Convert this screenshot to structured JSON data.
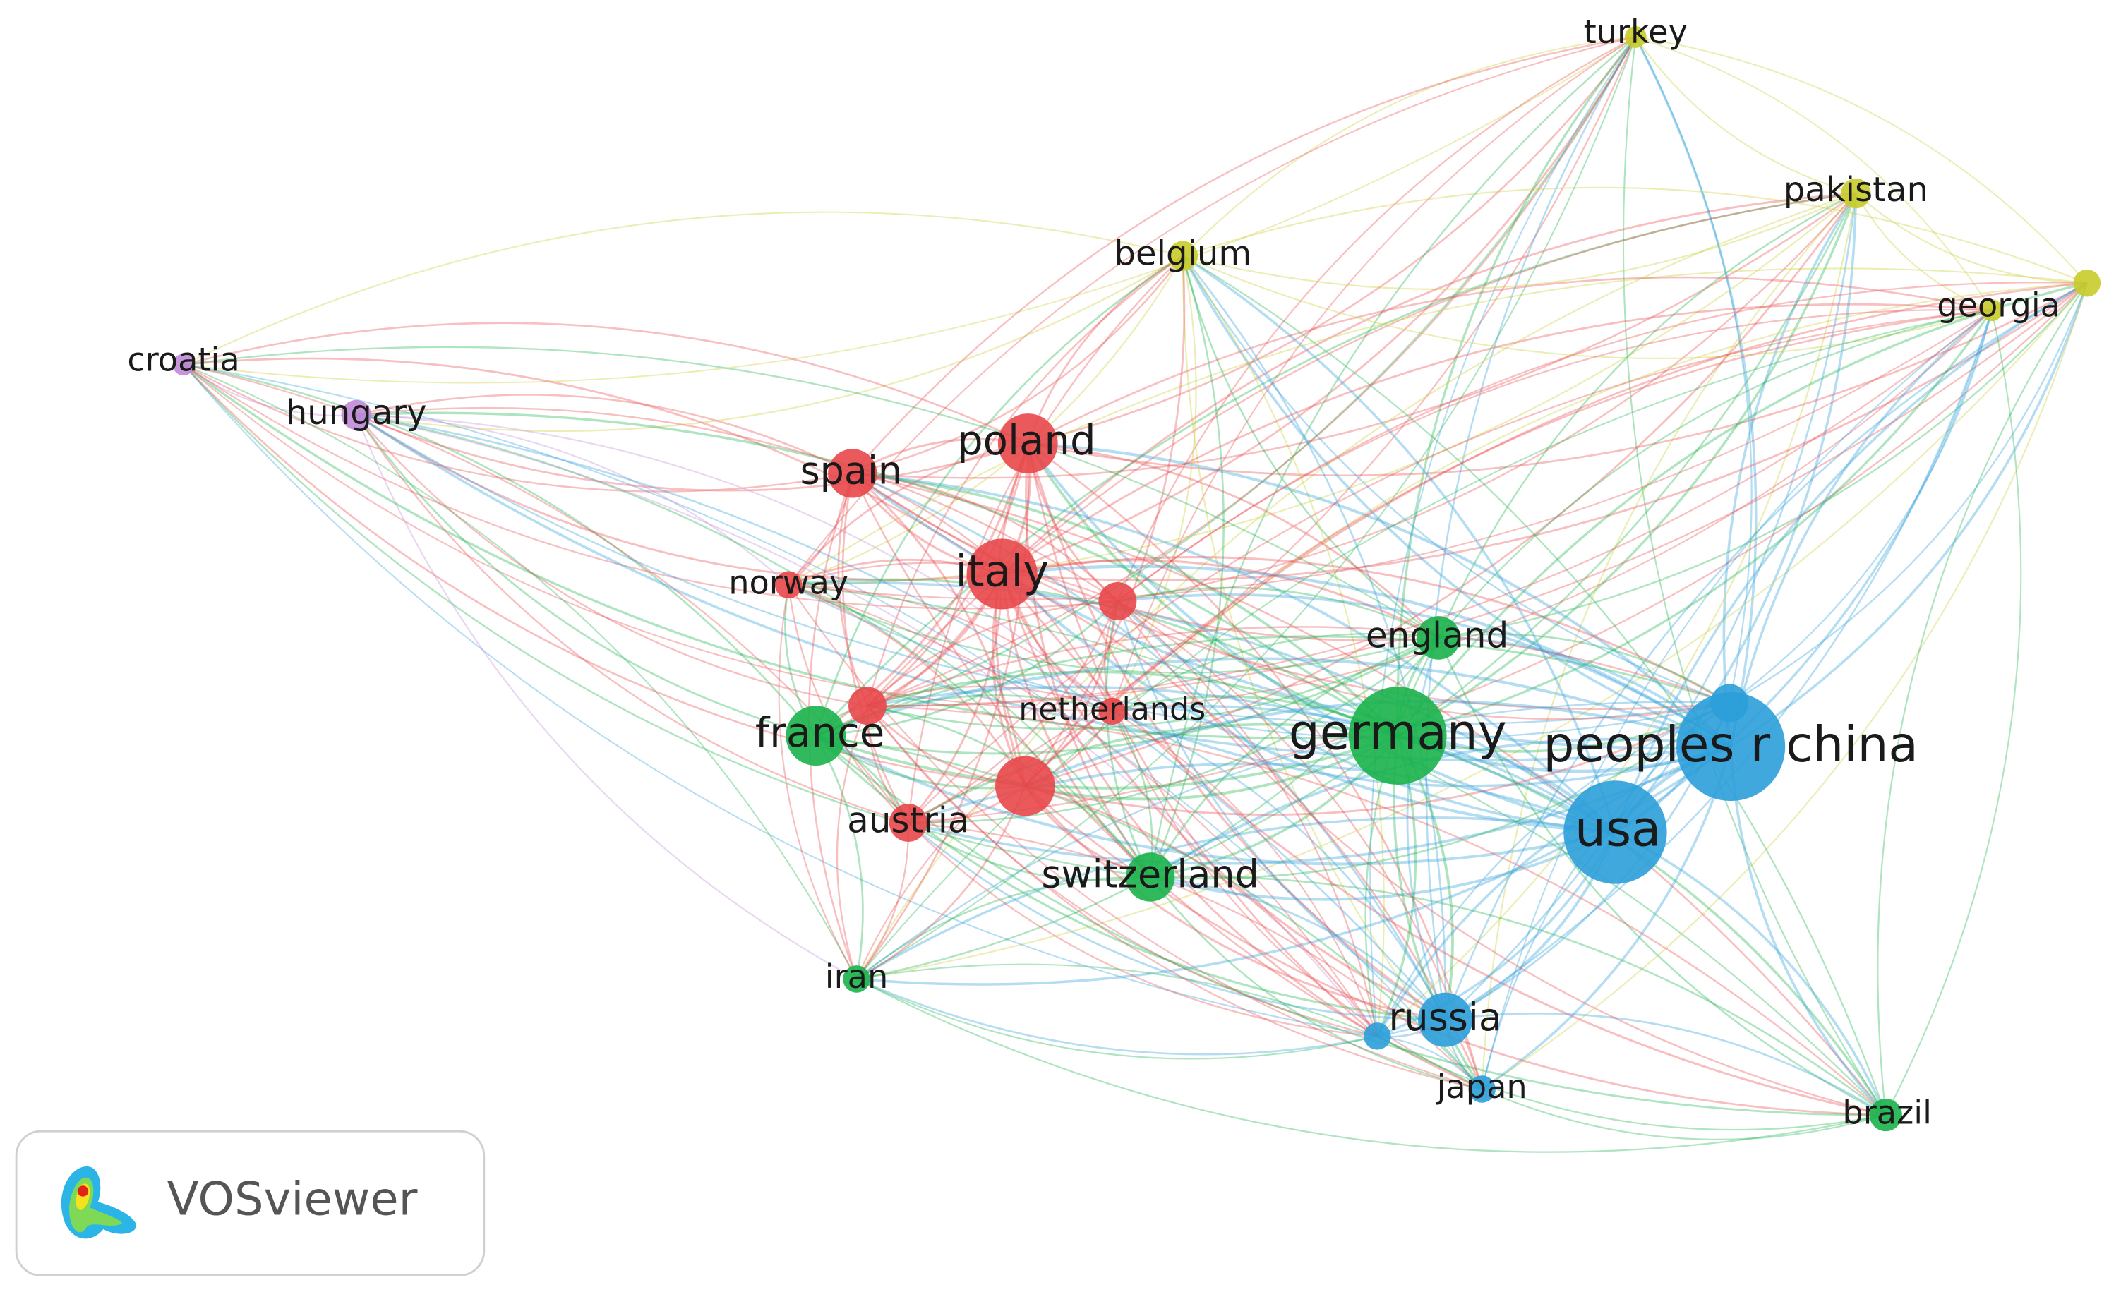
{
  "nodes": [
    {
      "label": "turkey",
      "color": "#c9cc2a"
    },
    {
      "label": "pakistan",
      "color": "#c9cc2a"
    },
    {
      "label": "georgia",
      "color": "#c9cc2a"
    },
    {
      "label": "belgium",
      "color": "#c9cc2a"
    },
    {
      "label": "croatia",
      "color": "#c08ad8"
    },
    {
      "label": "hungary",
      "color": "#c08ad8"
    },
    {
      "label": "poland",
      "color": "#e8474a"
    },
    {
      "label": "spain",
      "color": "#e8474a"
    },
    {
      "label": "italy",
      "color": "#e8474a"
    },
    {
      "label": "norway",
      "color": "#e8474a"
    },
    {
      "label": "england",
      "color": "#1bb24b"
    },
    {
      "label": "netherlands",
      "color": "#e8474a"
    },
    {
      "label": "france",
      "color": "#1bb24b"
    },
    {
      "label": "germany",
      "color": "#1bb24b"
    },
    {
      "label": "peoples r china",
      "color": "#2b9fd9"
    },
    {
      "label": "usa",
      "color": "#2b9fd9"
    },
    {
      "label": "austria",
      "color": "#e8474a"
    },
    {
      "label": "switzerland",
      "color": "#1bb24b"
    },
    {
      "label": "iran",
      "color": "#1bb24b"
    },
    {
      "label": "russia",
      "color": "#2b9fd9"
    },
    {
      "label": "japan",
      "color": "#2b9fd9"
    },
    {
      "label": "brazil",
      "color": "#1bb24b"
    }
  ],
  "logo": {
    "text": "VOSviewer"
  }
}
